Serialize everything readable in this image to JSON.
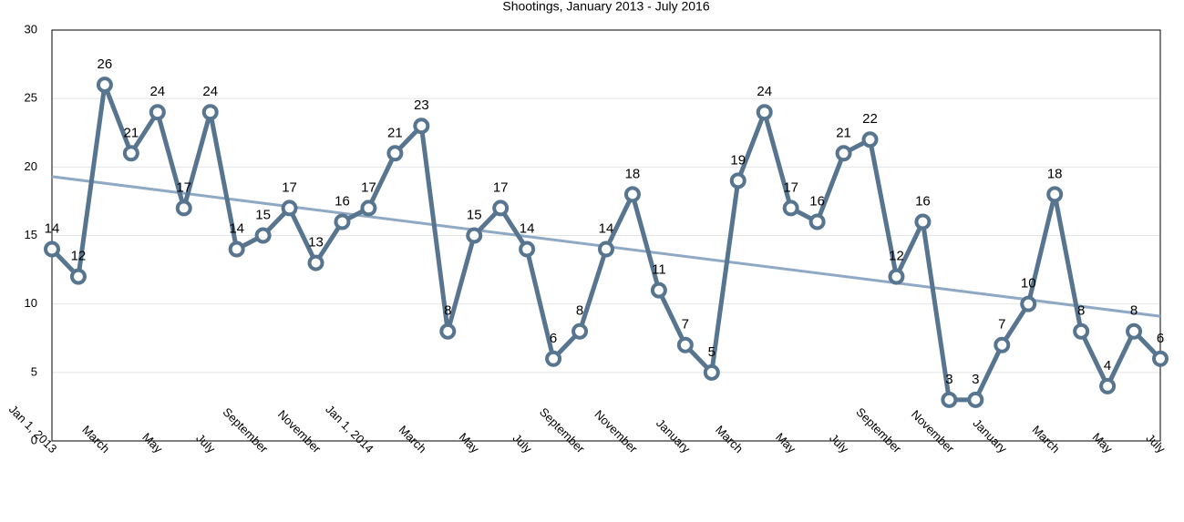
{
  "chart_data": {
    "type": "line",
    "title": "Shootings, January 2013 - July 2016",
    "categories": [
      "Jan 1, 2013",
      null,
      "March",
      null,
      "May",
      null,
      "July",
      null,
      "September",
      null,
      "November",
      null,
      "Jan 1, 2014",
      null,
      "March",
      null,
      "May",
      null,
      "July",
      null,
      "September",
      null,
      "November",
      null,
      "January",
      null,
      "March",
      null,
      "May",
      null,
      "July",
      null,
      "September",
      null,
      "November",
      null,
      "January",
      null,
      "March",
      null,
      "May",
      null,
      "July"
    ],
    "series": [
      {
        "color": "#587590",
        "values": [
          14,
          12,
          26,
          21,
          24,
          17,
          24,
          14,
          15,
          17,
          13,
          16,
          17,
          21,
          23,
          8,
          15,
          17,
          14,
          6,
          8,
          14,
          18,
          11,
          7,
          5,
          19,
          24,
          17,
          16,
          21,
          22,
          12,
          16,
          3,
          3,
          7,
          10,
          18,
          8,
          4,
          8,
          6
        ]
      }
    ],
    "trendline": {
      "start": 19.3,
      "end": 9.1,
      "color": "#8fa9c4"
    },
    "ylim": [
      0,
      30
    ],
    "yticks": [
      0,
      5,
      10,
      15,
      20,
      25,
      30
    ],
    "grid": true
  }
}
